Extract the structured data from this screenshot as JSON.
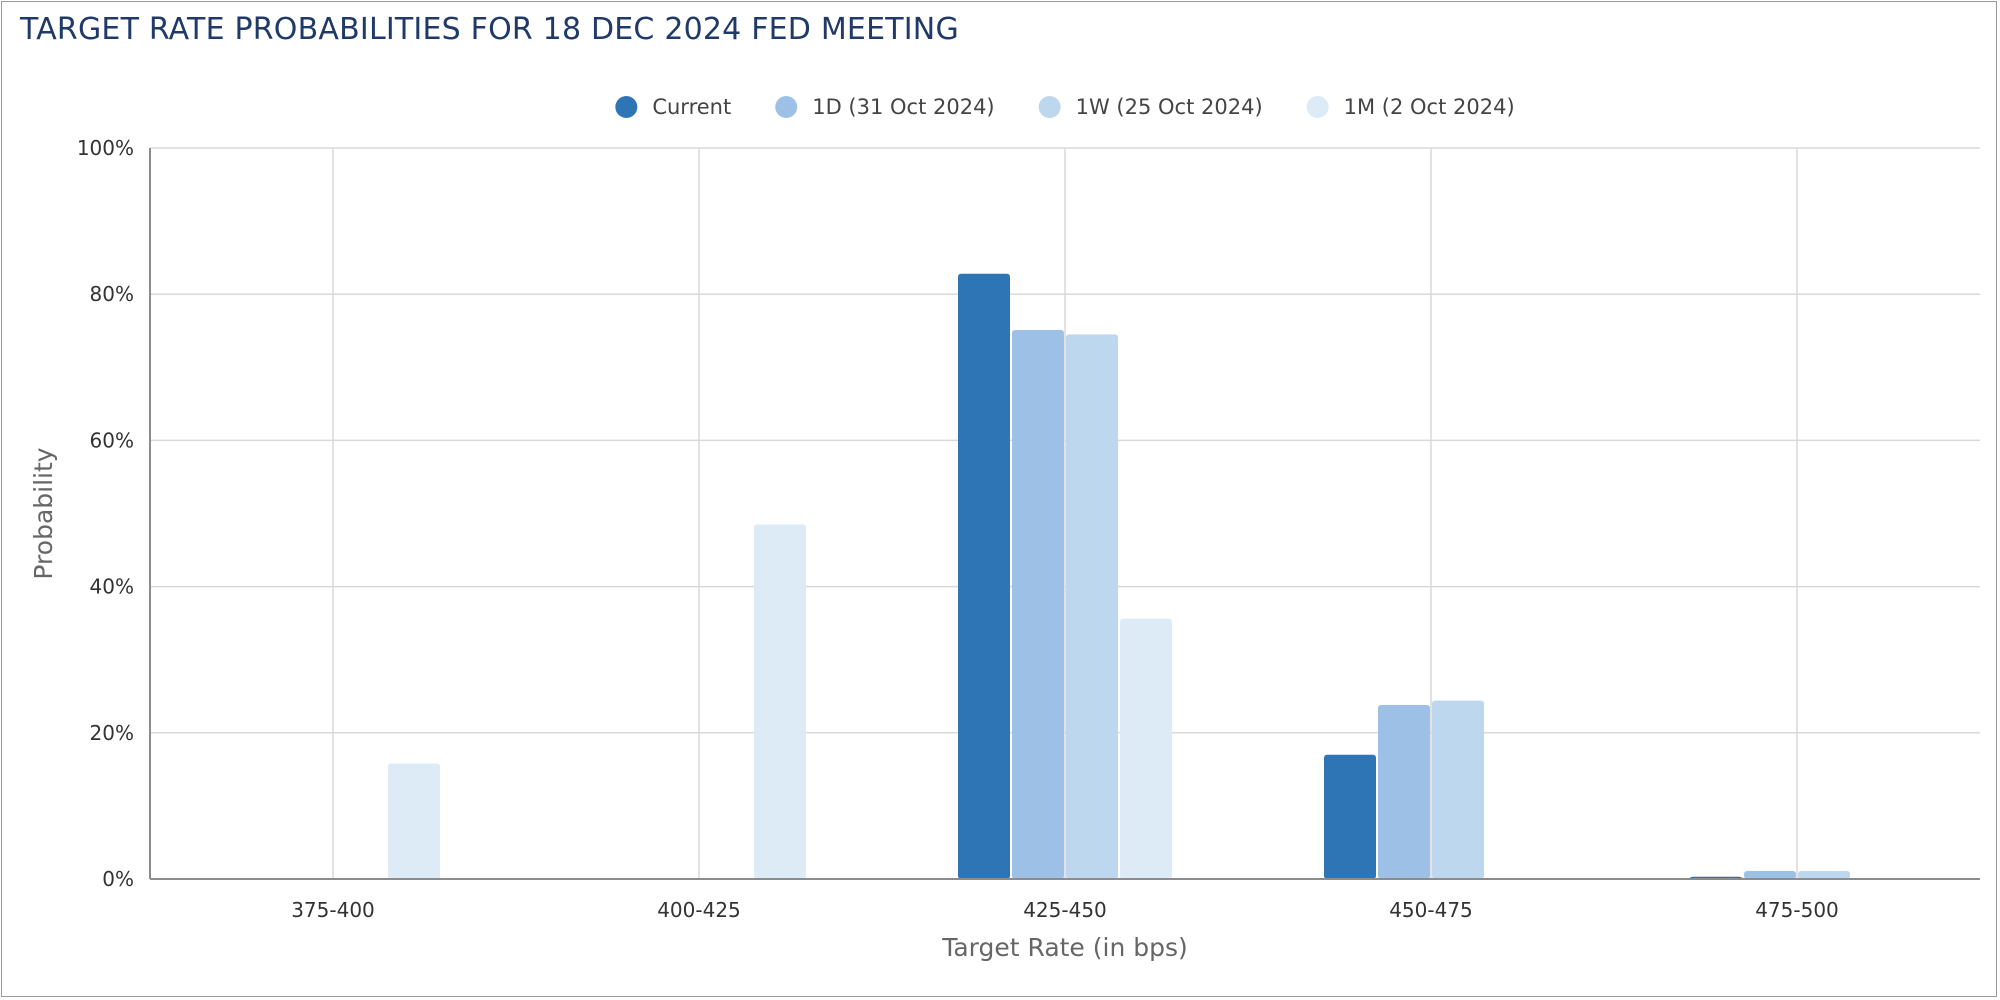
{
  "title": "TARGET RATE PROBABILITIES FOR 18 DEC 2024 FED MEETING",
  "chart_data": {
    "type": "bar",
    "categories": [
      "375-400",
      "400-425",
      "425-450",
      "450-475",
      "475-500"
    ],
    "series": [
      {
        "name": "Current",
        "color": "#2e75b6",
        "values": [
          0,
          0,
          82.8,
          17.0,
          0.3
        ]
      },
      {
        "name": "1D (31 Oct 2024)",
        "color": "#9dc1e6",
        "values": [
          0,
          0,
          75.1,
          23.8,
          1.1
        ]
      },
      {
        "name": "1W (25 Oct 2024)",
        "color": "#bdd7ee",
        "values": [
          0,
          0,
          74.5,
          24.4,
          1.1
        ]
      },
      {
        "name": "1M (2 Oct 2024)",
        "color": "#ddebf7",
        "values": [
          15.8,
          48.5,
          35.6,
          0,
          0
        ]
      }
    ],
    "xlabel": "Target Rate (in bps)",
    "ylabel": "Probability",
    "ylim": [
      0,
      100
    ],
    "yticks": [
      "0%",
      "20%",
      "40%",
      "60%",
      "80%",
      "100%"
    ],
    "ytick_values": [
      0,
      20,
      40,
      60,
      80,
      100
    ],
    "grid": true,
    "legend_position": "top-center"
  }
}
